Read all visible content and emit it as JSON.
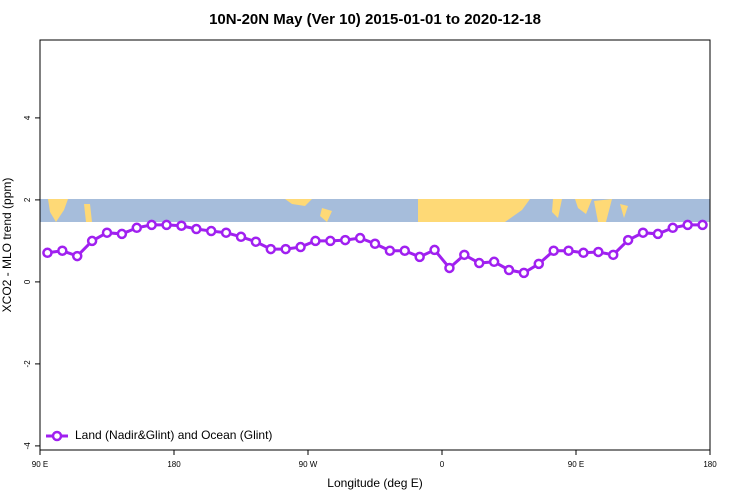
{
  "chart_data": {
    "type": "line",
    "title": "10N-20N May (Ver 10)   2015-01-01 to 2020-12-18",
    "x_label": "Longitude (deg E)",
    "y_label": "XCO2 - MLO trend (ppm)",
    "x": [
      95,
      105,
      115,
      125,
      135,
      145,
      155,
      165,
      175,
      185,
      195,
      205,
      215,
      225,
      235,
      245,
      255,
      265,
      275,
      285,
      295,
      305,
      315,
      325,
      335,
      345,
      355,
      365,
      375,
      385,
      395,
      405,
      415,
      425,
      435,
      445,
      455,
      465,
      475,
      485,
      495,
      505,
      515,
      525,
      535
    ],
    "series": [
      {
        "name": "Land (Nadir&Glint) and Ocean (Glint)",
        "color": "#a020f0",
        "values": [
          0.71,
          0.76,
          0.63,
          1.0,
          1.2,
          1.17,
          1.32,
          1.39,
          1.39,
          1.37,
          1.29,
          1.24,
          1.2,
          1.1,
          0.98,
          0.8,
          0.8,
          0.85,
          1.0,
          1.0,
          1.02,
          1.07,
          0.93,
          0.76,
          0.76,
          0.61,
          0.78,
          0.34,
          0.66,
          0.46,
          0.49,
          0.29,
          0.22,
          0.44,
          0.76,
          0.76,
          0.71,
          0.73,
          0.66,
          1.02,
          1.2,
          1.17,
          1.32,
          1.39,
          1.39
        ]
      }
    ],
    "xlim": [
      90,
      540
    ],
    "xticks": [
      {
        "value": 90,
        "label": "90 E"
      },
      180,
      {
        "value": 270,
        "label": "90 W"
      },
      {
        "value": 360,
        "label": "0"
      },
      {
        "value": 450,
        "label": "90 E"
      },
      {
        "value": 540,
        "label": "180"
      }
    ],
    "ylim": [
      -4.1,
      5.9
    ],
    "yticks": [
      -4,
      -2,
      0,
      2,
      4
    ],
    "legend_position": "bottomleft"
  }
}
